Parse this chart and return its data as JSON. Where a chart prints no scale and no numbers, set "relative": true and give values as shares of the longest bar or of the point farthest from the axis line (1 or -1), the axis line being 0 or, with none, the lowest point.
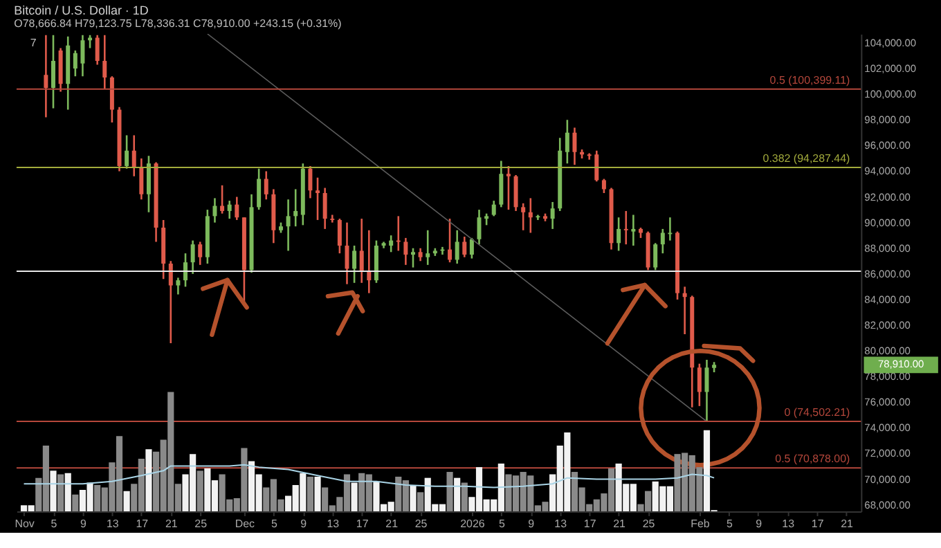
{
  "chart_data": [
    {
      "type": "candlestick",
      "title": "Bitcoin / U.S. Dollar · 1D",
      "subtitle": "O78,666.84 H79,123.75 L78,336.31 C78,910.00 +243.15 (+0.31%)",
      "x": [
        "2025-11-04",
        "2025-11-05",
        "2025-11-06",
        "2025-11-07",
        "2025-11-08",
        "2025-11-09",
        "2025-11-10",
        "2025-11-11",
        "2025-11-12",
        "2025-11-13",
        "2025-11-14",
        "2025-11-15",
        "2025-11-16",
        "2025-11-17",
        "2025-11-18",
        "2025-11-19",
        "2025-11-20",
        "2025-11-21",
        "2025-11-22",
        "2025-11-23",
        "2025-11-24",
        "2025-11-25",
        "2025-11-26",
        "2025-11-27",
        "2025-11-28",
        "2025-11-29",
        "2025-11-30",
        "2025-12-01",
        "2025-12-02",
        "2025-12-03",
        "2025-12-04",
        "2025-12-05",
        "2025-12-06",
        "2025-12-07",
        "2025-12-08",
        "2025-12-09",
        "2025-12-10",
        "2025-12-11",
        "2025-12-12",
        "2025-12-13",
        "2025-12-14",
        "2025-12-15",
        "2025-12-16",
        "2025-12-17",
        "2025-12-18",
        "2025-12-19",
        "2025-12-20",
        "2025-12-21",
        "2025-12-22",
        "2025-12-23",
        "2025-12-24",
        "2025-12-25",
        "2025-12-26",
        "2025-12-27",
        "2025-12-28",
        "2025-12-29",
        "2025-12-30",
        "2025-12-31",
        "2026-01-01",
        "2026-01-02",
        "2026-01-03",
        "2026-01-04",
        "2026-01-05",
        "2026-01-06",
        "2026-01-07",
        "2026-01-08",
        "2026-01-09",
        "2026-01-10",
        "2026-01-11",
        "2026-01-12",
        "2026-01-13",
        "2026-01-14",
        "2026-01-15",
        "2026-01-16",
        "2026-01-17",
        "2026-01-18",
        "2026-01-19",
        "2026-01-20",
        "2026-01-21",
        "2026-01-22",
        "2026-01-23",
        "2026-01-24",
        "2026-01-25",
        "2026-01-26",
        "2026-01-27",
        "2026-01-28",
        "2026-01-29",
        "2026-01-30",
        "2026-01-31",
        "2026-02-01",
        "2026-02-02",
        "2026-02-03"
      ],
      "ohlc": [
        [
          101500,
          104600,
          98200,
          100500
        ],
        [
          100500,
          104600,
          98900,
          102600
        ],
        [
          103400,
          103600,
          100200,
          100800
        ],
        [
          100800,
          104500,
          98800,
          103800
        ],
        [
          102000,
          103400,
          101400,
          103200
        ],
        [
          102400,
          104600,
          101400,
          104200
        ],
        [
          104200,
          104600,
          103600,
          104400
        ],
        [
          104400,
          104600,
          102300,
          102600
        ],
        [
          102600,
          104600,
          100400,
          101300
        ],
        [
          101300,
          101400,
          97800,
          98800
        ],
        [
          98800,
          99000,
          94000,
          94400
        ],
        [
          94400,
          96800,
          94200,
          95600
        ],
        [
          95600,
          96800,
          93600,
          94300
        ],
        [
          94300,
          95000,
          91800,
          92200
        ],
        [
          92200,
          95200,
          90800,
          94600
        ],
        [
          94600,
          94700,
          88500,
          89600
        ],
        [
          89600,
          90200,
          85600,
          86800
        ],
        [
          86800,
          87000,
          80600,
          85100
        ],
        [
          85100,
          85700,
          84400,
          85500
        ],
        [
          85500,
          87600,
          85000,
          86900
        ],
        [
          86900,
          88600,
          86000,
          88300
        ],
        [
          88300,
          88500,
          86700,
          87300
        ],
        [
          87300,
          91000,
          86800,
          90500
        ],
        [
          90500,
          91900,
          90000,
          91300
        ],
        [
          91300,
          92900,
          90700,
          90900
        ],
        [
          90900,
          91700,
          90300,
          91400
        ],
        [
          91400,
          92000,
          90200,
          90400
        ],
        [
          90400,
          90400,
          83800,
          86300
        ],
        [
          86300,
          92200,
          86100,
          91200
        ],
        [
          91200,
          94200,
          91000,
          93400
        ],
        [
          93400,
          94000,
          91800,
          92200
        ],
        [
          92200,
          92600,
          88400,
          89400
        ],
        [
          89400,
          90000,
          89200,
          89700
        ],
        [
          89700,
          91800,
          87800,
          90500
        ],
        [
          90500,
          92600,
          89700,
          90900
        ],
        [
          90600,
          94600,
          89800,
          94200
        ],
        [
          94200,
          94400,
          91900,
          92500
        ],
        [
          92500,
          93500,
          90200,
          92300
        ],
        [
          92300,
          92700,
          89500,
          90300
        ],
        [
          90300,
          90600,
          90000,
          90200
        ],
        [
          90200,
          90300,
          87600,
          88200
        ],
        [
          88200,
          90000,
          85200,
          86400
        ],
        [
          86400,
          88200,
          85300,
          87800
        ],
        [
          87800,
          90300,
          85300,
          86200
        ],
        [
          86200,
          89400,
          84500,
          85500
        ],
        [
          85500,
          88600,
          85300,
          88200
        ],
        [
          88200,
          88500,
          88000,
          88400
        ],
        [
          88200,
          89000,
          87700,
          88600
        ],
        [
          88600,
          90500,
          87800,
          88500
        ],
        [
          88500,
          88800,
          86700,
          87500
        ],
        [
          87500,
          88000,
          86500,
          87700
        ],
        [
          87700,
          88000,
          87000,
          87300
        ],
        [
          87300,
          89400,
          86700,
          87600
        ],
        [
          87600,
          88000,
          87400,
          87800
        ],
        [
          87800,
          88100,
          87500,
          87900
        ],
        [
          87900,
          90300,
          86900,
          87100
        ],
        [
          87100,
          89400,
          86800,
          88500
        ],
        [
          88500,
          88900,
          87300,
          87500
        ],
        [
          87500,
          88800,
          87200,
          88700
        ],
        [
          88700,
          91000,
          88300,
          90400
        ],
        [
          90300,
          90700,
          89800,
          90500
        ],
        [
          90600,
          91700,
          90500,
          91400
        ],
        [
          91400,
          94800,
          91200,
          93800
        ],
        [
          93800,
          94400,
          91000,
          93600
        ],
        [
          93600,
          93700,
          90900,
          91200
        ],
        [
          91200,
          91500,
          89400,
          90800
        ],
        [
          90800,
          91900,
          89200,
          90400
        ],
        [
          90400,
          90600,
          90200,
          90500
        ],
        [
          90500,
          90700,
          90100,
          90300
        ],
        [
          90300,
          91600,
          89500,
          91100
        ],
        [
          91100,
          96600,
          90900,
          95600
        ],
        [
          95500,
          98000,
          94600,
          97000
        ],
        [
          97000,
          97400,
          94500,
          95500
        ],
        [
          95500,
          95700,
          95000,
          95300
        ],
        [
          95300,
          95400,
          94900,
          95200
        ],
        [
          95300,
          95600,
          93200,
          93300
        ],
        [
          93300,
          93400,
          92300,
          92600
        ],
        [
          92600,
          92700,
          87900,
          88400
        ],
        [
          88400,
          90400,
          87800,
          89500
        ],
        [
          89500,
          90900,
          88300,
          89400
        ],
        [
          89300,
          90600,
          88200,
          89500
        ],
        [
          89500,
          89600,
          88800,
          89200
        ],
        [
          89200,
          89300,
          86300,
          86500
        ],
        [
          86500,
          88400,
          86300,
          88300
        ],
        [
          88300,
          89500,
          87600,
          89200
        ],
        [
          89100,
          90400,
          88600,
          89200
        ],
        [
          89200,
          89300,
          84000,
          84500
        ],
        [
          84500,
          85000,
          81300,
          84200
        ],
        [
          84200,
          84300,
          75600,
          78700
        ],
        [
          78700,
          79000,
          75700,
          76800
        ],
        [
          76800,
          79300,
          74500,
          78700
        ],
        [
          78666.84,
          79123.75,
          78336.31,
          78910
        ]
      ],
      "colors": [
        "#e05b4b",
        "#7dba5c",
        "#e05b4b",
        "#7dba5c",
        "#7dba5c",
        "#7dba5c",
        "#7dba5c",
        "#e05b4b",
        "#e05b4b",
        "#e05b4b",
        "#e05b4b",
        "#7dba5c",
        "#e05b4b",
        "#e05b4b",
        "#7dba5c",
        "#e05b4b",
        "#e05b4b",
        "#e05b4b",
        "#7dba5c",
        "#7dba5c",
        "#7dba5c",
        "#e05b4b",
        "#7dba5c",
        "#7dba5c",
        "#e05b4b",
        "#7dba5c",
        "#e05b4b",
        "#e05b4b",
        "#7dba5c",
        "#7dba5c",
        "#e05b4b",
        "#e05b4b",
        "#7dba5c",
        "#7dba5c",
        "#7dba5c",
        "#7dba5c",
        "#e05b4b",
        "#e05b4b",
        "#e05b4b",
        "#e05b4b",
        "#e05b4b",
        "#e05b4b",
        "#7dba5c",
        "#e05b4b",
        "#e05b4b",
        "#7dba5c",
        "#7dba5c",
        "#7dba5c",
        "#e05b4b",
        "#e05b4b",
        "#7dba5c",
        "#e05b4b",
        "#7dba5c",
        "#7dba5c",
        "#7dba5c",
        "#e05b4b",
        "#7dba5c",
        "#e05b4b",
        "#7dba5c",
        "#7dba5c",
        "#7dba5c",
        "#7dba5c",
        "#7dba5c",
        "#e05b4b",
        "#e05b4b",
        "#e05b4b",
        "#e05b4b",
        "#7dba5c",
        "#e05b4b",
        "#7dba5c",
        "#7dba5c",
        "#7dba5c",
        "#e05b4b",
        "#e05b4b",
        "#e05b4b",
        "#e05b4b",
        "#e05b4b",
        "#e05b4b",
        "#7dba5c",
        "#e05b4b",
        "#7dba5c",
        "#e05b4b",
        "#e05b4b",
        "#7dba5c",
        "#7dba5c",
        "#7dba5c",
        "#e05b4b",
        "#e05b4b",
        "#e05b4b",
        "#e05b4b",
        "#7dba5c",
        "#7dba5c"
      ],
      "series": [
        {
          "type": "line",
          "color": "#5c5c5c",
          "x": [
            "2025-11-26",
            "2026-02-02"
          ],
          "values": [
            104700,
            74500
          ]
        }
      ],
      "xlim": [
        "2025-10-31",
        "2026-02-23"
      ],
      "ylim": [
        67500,
        104700
      ],
      "xticks": [
        {
          "value": "2025-11-01",
          "label": "Nov"
        },
        {
          "value": "2025-11-05",
          "label": "5"
        },
        {
          "value": "2025-11-09",
          "label": "9"
        },
        {
          "value": "2025-11-13",
          "label": "13"
        },
        {
          "value": "2025-11-17",
          "label": "17"
        },
        {
          "value": "2025-11-21",
          "label": "21"
        },
        {
          "value": "2025-11-25",
          "label": "25"
        },
        {
          "value": "2025-12-01",
          "label": "Dec"
        },
        {
          "value": "2025-12-05",
          "label": "5"
        },
        {
          "value": "2025-12-09",
          "label": "9"
        },
        {
          "value": "2025-12-13",
          "label": "13"
        },
        {
          "value": "2025-12-17",
          "label": "17"
        },
        {
          "value": "2025-12-21",
          "label": "21"
        },
        {
          "value": "2025-12-25",
          "label": "25"
        },
        {
          "value": "2026-01-01",
          "label": "2026"
        },
        {
          "value": "2026-01-05",
          "label": "5"
        },
        {
          "value": "2026-01-09",
          "label": "9"
        },
        {
          "value": "2026-01-13",
          "label": "13"
        },
        {
          "value": "2026-01-17",
          "label": "17"
        },
        {
          "value": "2026-01-21",
          "label": "21"
        },
        {
          "value": "2026-01-25",
          "label": "25"
        },
        {
          "value": "2026-02-01",
          "label": "Feb"
        },
        {
          "value": "2026-02-05",
          "label": "5"
        },
        {
          "value": "2026-02-09",
          "label": "9"
        },
        {
          "value": "2026-02-13",
          "label": "13"
        },
        {
          "value": "2026-02-17",
          "label": "17"
        },
        {
          "value": "2026-02-21",
          "label": "21"
        }
      ],
      "yticks": [
        {
          "value": 68000,
          "label": "68,000.00"
        },
        {
          "value": 70000,
          "label": "70,000.00"
        },
        {
          "value": 72000,
          "label": "72,000.00"
        },
        {
          "value": 74000,
          "label": "74,000.00"
        },
        {
          "value": 76000,
          "label": "76,000.00"
        },
        {
          "value": 78000,
          "label": "78,000.00"
        },
        {
          "value": 80000,
          "label": "80,000.00"
        },
        {
          "value": 82000,
          "label": "82,000.00"
        },
        {
          "value": 84000,
          "label": "84,000.00"
        },
        {
          "value": 86000,
          "label": "86,000.00"
        },
        {
          "value": 88000,
          "label": "88,000.00"
        },
        {
          "value": 90000,
          "label": "90,000.00"
        },
        {
          "value": 92000,
          "label": "92,000.00"
        },
        {
          "value": 94000,
          "label": "94,000.00"
        },
        {
          "value": 96000,
          "label": "96,000.00"
        },
        {
          "value": 98000,
          "label": "98,000.00"
        },
        {
          "value": 100000,
          "label": "100,000.00"
        },
        {
          "value": 102000,
          "label": "102,000.00"
        },
        {
          "value": 104000,
          "label": "104,000.00"
        }
      ],
      "ref_lines": [
        {
          "axis": "y",
          "value": 100399.11,
          "label": "0.5 (100,399.11)",
          "color": "#b5473b"
        },
        {
          "axis": "y",
          "value": 94287.44,
          "label": "0.382 (94,287.44)",
          "color": "#a3ab3c"
        },
        {
          "axis": "y",
          "value": 86200,
          "label": null,
          "color": "#e8e8e8"
        },
        {
          "axis": "y",
          "value": 74502.21,
          "label": "0 (74,502.21)",
          "color": "#b5473b"
        },
        {
          "axis": "y",
          "value": 70878,
          "label": "0.5 (70,878.00)",
          "color": "#b5473b"
        }
      ],
      "annotations": [
        "7",
        "78,910.00"
      ]
    },
    {
      "type": "bar",
      "relative": true,
      "xlim": [
        "2025-10-31",
        "2026-02-23"
      ],
      "x": [
        "2025-11-01",
        "2025-11-02",
        "2025-11-03",
        "2025-11-04",
        "2025-11-05",
        "2025-11-06",
        "2025-11-07",
        "2025-11-08",
        "2025-11-09",
        "2025-11-10",
        "2025-11-11",
        "2025-11-12",
        "2025-11-13",
        "2025-11-14",
        "2025-11-15",
        "2025-11-16",
        "2025-11-17",
        "2025-11-18",
        "2025-11-19",
        "2025-11-20",
        "2025-11-21",
        "2025-11-22",
        "2025-11-23",
        "2025-11-24",
        "2025-11-25",
        "2025-11-26",
        "2025-11-27",
        "2025-11-28",
        "2025-11-29",
        "2025-11-30",
        "2025-12-01",
        "2025-12-02",
        "2025-12-03",
        "2025-12-04",
        "2025-12-05",
        "2025-12-06",
        "2025-12-07",
        "2025-12-08",
        "2025-12-09",
        "2025-12-10",
        "2025-12-11",
        "2025-12-12",
        "2025-12-13",
        "2025-12-14",
        "2025-12-15",
        "2025-12-16",
        "2025-12-17",
        "2025-12-18",
        "2025-12-19",
        "2025-12-20",
        "2025-12-21",
        "2025-12-22",
        "2025-12-23",
        "2025-12-24",
        "2025-12-25",
        "2025-12-26",
        "2025-12-27",
        "2025-12-28",
        "2025-12-29",
        "2025-12-30",
        "2025-12-31",
        "2026-01-01",
        "2026-01-02",
        "2026-01-03",
        "2026-01-04",
        "2026-01-05",
        "2026-01-06",
        "2026-01-07",
        "2026-01-08",
        "2026-01-09",
        "2026-01-10",
        "2026-01-11",
        "2026-01-12",
        "2026-01-13",
        "2026-01-14",
        "2026-01-15",
        "2026-01-16",
        "2026-01-17",
        "2026-01-18",
        "2026-01-19",
        "2026-01-20",
        "2026-01-21",
        "2026-01-22",
        "2026-01-23",
        "2026-01-24",
        "2026-01-25",
        "2026-01-26",
        "2026-01-27",
        "2026-01-28",
        "2026-01-29",
        "2026-01-30",
        "2026-01-31",
        "2026-02-01",
        "2026-02-02",
        "2026-02-03"
      ],
      "series": [
        {
          "type": "bar",
          "values": [
            0.05,
            0.05,
            0.28,
            0.55,
            0.34,
            0.31,
            0.32,
            0.14,
            0.18,
            0.24,
            0.22,
            0.2,
            0.41,
            0.63,
            0.17,
            0.23,
            0.44,
            0.52,
            0.5,
            0.6,
            1,
            0.23,
            0.31,
            0.48,
            0.34,
            0.36,
            0.26,
            0.31,
            0.1,
            0.11,
            0.53,
            0.42,
            0.31,
            0.2,
            0.27,
            0.1,
            0.13,
            0.22,
            0.32,
            0.29,
            0.29,
            0.2,
            0.05,
            0.12,
            0.31,
            0.24,
            0.32,
            0.31,
            0.25,
            0.06,
            0.08,
            0.29,
            0.26,
            0.22,
            0.16,
            0.28,
            0.06,
            0.06,
            0.33,
            0.28,
            0.24,
            0.12,
            0.37,
            0.1,
            0.1,
            0.4,
            0.31,
            0.3,
            0.33,
            0.3,
            0.05,
            0.08,
            0.31,
            0.55,
            0.66,
            0.33,
            0.2,
            0.06,
            0.1,
            0.15,
            0.36,
            0.4,
            0.23,
            0.23,
            0.06,
            0.17,
            0.25,
            0.21,
            0.21,
            0.48,
            0.49,
            0.47,
            0.37,
            0.68,
            0.01
          ],
          "colors": [
            "#f2f2f2",
            "#f2f2f2",
            "#8a8a8a",
            "#8a8a8a",
            "#f2f2f2",
            "#8a8a8a",
            "#f2f2f2",
            "#8a8a8a",
            "#f2f2f2",
            "#f2f2f2",
            "#8a8a8a",
            "#8a8a8a",
            "#8a8a8a",
            "#8a8a8a",
            "#f2f2f2",
            "#8a8a8a",
            "#8a8a8a",
            "#f2f2f2",
            "#8a8a8a",
            "#8a8a8a",
            "#8a8a8a",
            "#8a8a8a",
            "#f2f2f2",
            "#f2f2f2",
            "#8a8a8a",
            "#f2f2f2",
            "#f2f2f2",
            "#8a8a8a",
            "#8a8a8a",
            "#8a8a8a",
            "#8a8a8a",
            "#f2f2f2",
            "#f2f2f2",
            "#8a8a8a",
            "#8a8a8a",
            "#8a8a8a",
            "#f2f2f2",
            "#f2f2f2",
            "#f2f2f2",
            "#8a8a8a",
            "#f2f2f2",
            "#8a8a8a",
            "#8a8a8a",
            "#8a8a8a",
            "#8a8a8a",
            "#f2f2f2",
            "#8a8a8a",
            "#8a8a8a",
            "#f2f2f2",
            "#f2f2f2",
            "#f2f2f2",
            "#8a8a8a",
            "#8a8a8a",
            "#f2f2f2",
            "#8a8a8a",
            "#f2f2f2",
            "#f2f2f2",
            "#f2f2f2",
            "#8a8a8a",
            "#f2f2f2",
            "#8a8a8a",
            "#f2f2f2",
            "#f2f2f2",
            "#f2f2f2",
            "#f2f2f2",
            "#f2f2f2",
            "#8a8a8a",
            "#8a8a8a",
            "#8a8a8a",
            "#8a8a8a",
            "#8a8a8a",
            "#8a8a8a",
            "#f2f2f2",
            "#f2f2f2",
            "#f2f2f2",
            "#8a8a8a",
            "#8a8a8a",
            "#8a8a8a",
            "#8a8a8a",
            "#8a8a8a",
            "#8a8a8a",
            "#f2f2f2",
            "#f2f2f2",
            "#f2f2f2",
            "#8a8a8a",
            "#8a8a8a",
            "#f2f2f2",
            "#f2f2f2",
            "#f2f2f2",
            "#8a8a8a",
            "#8a8a8a",
            "#8a8a8a",
            "#8a8a8a",
            "#f2f2f2",
            "#f2f2f2"
          ]
        },
        {
          "type": "line",
          "color": "#a9d4e6",
          "x": [
            "2025-11-01",
            "2025-11-05",
            "2025-11-09",
            "2025-11-13",
            "2025-11-17",
            "2025-11-20",
            "2025-11-21",
            "2025-11-25",
            "2025-11-29",
            "2025-12-01",
            "2025-12-03",
            "2025-12-07",
            "2025-12-11",
            "2025-12-15",
            "2025-12-19",
            "2025-12-23",
            "2025-12-27",
            "2025-12-31",
            "2026-01-04",
            "2026-01-08",
            "2026-01-12",
            "2026-01-14",
            "2026-01-18",
            "2026-01-22",
            "2026-01-26",
            "2026-01-29",
            "2026-01-31",
            "2026-02-02",
            "2026-02-03"
          ],
          "values": [
            0.23,
            0.23,
            0.23,
            0.25,
            0.3,
            0.34,
            0.38,
            0.38,
            0.38,
            0.39,
            0.37,
            0.35,
            0.3,
            0.25,
            0.25,
            0.22,
            0.21,
            0.21,
            0.2,
            0.21,
            0.23,
            0.28,
            0.27,
            0.27,
            0.27,
            0.28,
            0.31,
            0.3,
            0.28
          ]
        }
      ]
    }
  ]
}
